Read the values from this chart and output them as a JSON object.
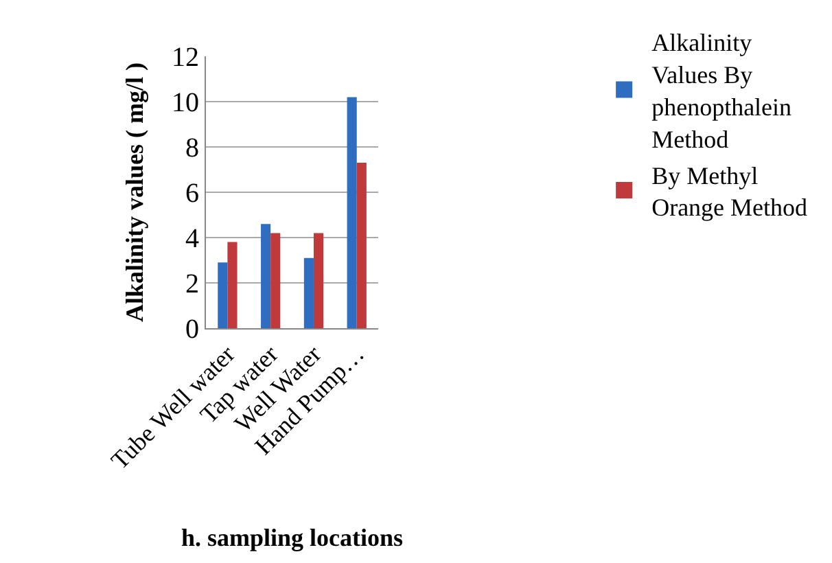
{
  "chart_data": {
    "type": "bar",
    "xlabel": "h. sampling locations",
    "ylabel": "Alkalinity values ( mg/l )",
    "categories": [
      "Tube Well water",
      "Tap water",
      "Well Water",
      "Hand Pump…"
    ],
    "series": [
      {
        "name": "Alkalinity Values By phenopthalein Method",
        "color": "#2e6dbf",
        "values": [
          2.9,
          4.6,
          3.1,
          10.2
        ]
      },
      {
        "name": "By Methyl Orange Method",
        "color": "#c0393b",
        "values": [
          3.8,
          4.2,
          4.2,
          7.3
        ]
      }
    ],
    "ylim": [
      0,
      12
    ],
    "yticks": [
      0,
      2,
      4,
      6,
      8,
      10,
      12
    ],
    "grid": "y",
    "legend": "right"
  }
}
